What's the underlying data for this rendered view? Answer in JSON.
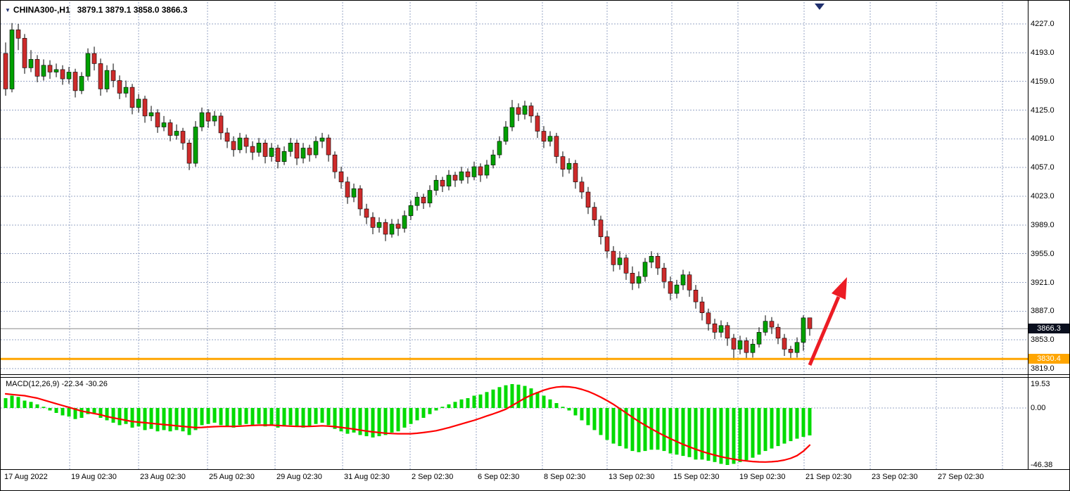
{
  "header": {
    "symbol_dropdown_marker": "▼",
    "symbol_period": "CHINA300-,H1",
    "ohlc": "3879.1 3879.1 3858.0 3866.3"
  },
  "badges": {
    "current": "3866.3",
    "level": "3830.4"
  },
  "colors": {
    "background": "#FFFFFF",
    "bull": "#00A000",
    "bear": "#CE2B2B",
    "candle_outline": "#000000",
    "histogram": "#00DB00",
    "signal": "#FF0000",
    "grid": "#97A5C6",
    "orange_line": "#FFA500",
    "current_price_line": "#8A8A8A",
    "arrow": "#EC1C24",
    "shift_marker": "#20306E",
    "badge_current_bg": "#0A0F1E",
    "badge_orange_bg": "#FFA500",
    "text": "#000000"
  },
  "chart_data": {
    "type": "candlestick",
    "title": "CHINA300-,H1",
    "current_bar": {
      "open": 3879.1,
      "high": 3879.1,
      "low": 3858.0,
      "close": 3866.3
    },
    "y_tick_labels": [
      "4227.0",
      "4193.0",
      "4159.0",
      "4125.0",
      "4091.0",
      "4057.0",
      "4023.0",
      "3989.0",
      "3955.0",
      "3921.0",
      "3887.0",
      "3853.0",
      "3819.0"
    ],
    "y_tick_values": [
      4227.0,
      4193.0,
      4159.0,
      4125.0,
      4091.0,
      4057.0,
      4023.0,
      3989.0,
      3955.0,
      3921.0,
      3887.0,
      3853.0,
      3819.0
    ],
    "x_tick_labels": [
      "17 Aug 2022",
      "19 Aug 02:30",
      "23 Aug 02:30",
      "25 Aug 02:30",
      "29 Aug 02:30",
      "31 Aug 02:30",
      "2 Sep 02:30",
      "6 Sep 02:30",
      "8 Sep 02:30",
      "13 Sep 02:30",
      "15 Sep 02:30",
      "19 Sep 02:30",
      "21 Sep 02:30",
      "23 Sep 02:30",
      "27 Sep 02:30"
    ],
    "levels": {
      "current_price": 3866.3,
      "horizontal_line": 3830.4
    },
    "candles": [
      [
        4192,
        4205,
        4142,
        4150
      ],
      [
        4150,
        4228,
        4146,
        4220
      ],
      [
        4220,
        4227,
        4196,
        4210
      ],
      [
        4210,
        4215,
        4168,
        4175
      ],
      [
        4175,
        4196,
        4170,
        4185
      ],
      [
        4185,
        4190,
        4158,
        4165
      ],
      [
        4165,
        4185,
        4160,
        4178
      ],
      [
        4178,
        4184,
        4162,
        4170
      ],
      [
        4170,
        4180,
        4164,
        4173
      ],
      [
        4173,
        4178,
        4155,
        4162
      ],
      [
        4162,
        4176,
        4156,
        4170
      ],
      [
        4170,
        4174,
        4140,
        4148
      ],
      [
        4148,
        4170,
        4144,
        4165
      ],
      [
        4165,
        4198,
        4160,
        4192
      ],
      [
        4192,
        4200,
        4172,
        4180
      ],
      [
        4180,
        4186,
        4142,
        4150
      ],
      [
        4150,
        4178,
        4146,
        4172
      ],
      [
        4172,
        4180,
        4152,
        4160
      ],
      [
        4160,
        4166,
        4138,
        4145
      ],
      [
        4145,
        4160,
        4140,
        4152
      ],
      [
        4152,
        4156,
        4120,
        4128
      ],
      [
        4128,
        4144,
        4122,
        4138
      ],
      [
        4138,
        4142,
        4110,
        4118
      ],
      [
        4118,
        4130,
        4112,
        4122
      ],
      [
        4122,
        4126,
        4098,
        4105
      ],
      [
        4105,
        4118,
        4100,
        4110
      ],
      [
        4110,
        4114,
        4088,
        4095
      ],
      [
        4095,
        4108,
        4090,
        4100
      ],
      [
        4100,
        4104,
        4078,
        4086
      ],
      [
        4086,
        4090,
        4054,
        4062
      ],
      [
        4062,
        4112,
        4058,
        4105
      ],
      [
        4105,
        4128,
        4100,
        4122
      ],
      [
        4122,
        4126,
        4104,
        4112
      ],
      [
        4112,
        4124,
        4106,
        4118
      ],
      [
        4118,
        4122,
        4090,
        4098
      ],
      [
        4098,
        4104,
        4080,
        4088
      ],
      [
        4088,
        4094,
        4070,
        4078
      ],
      [
        4078,
        4098,
        4074,
        4092
      ],
      [
        4092,
        4096,
        4074,
        4082
      ],
      [
        4082,
        4088,
        4066,
        4075
      ],
      [
        4075,
        4092,
        4070,
        4086
      ],
      [
        4086,
        4090,
        4062,
        4070
      ],
      [
        4070,
        4086,
        4064,
        4080
      ],
      [
        4080,
        4084,
        4056,
        4064
      ],
      [
        4064,
        4082,
        4060,
        4076
      ],
      [
        4076,
        4092,
        4070,
        4086
      ],
      [
        4086,
        4090,
        4060,
        4068
      ],
      [
        4068,
        4086,
        4062,
        4080
      ],
      [
        4080,
        4084,
        4064,
        4072
      ],
      [
        4072,
        4094,
        4068,
        4088
      ],
      [
        4088,
        4098,
        4080,
        4092
      ],
      [
        4092,
        4096,
        4064,
        4072
      ],
      [
        4072,
        4076,
        4044,
        4052
      ],
      [
        4052,
        4058,
        4032,
        4040
      ],
      [
        4040,
        4046,
        4014,
        4022
      ],
      [
        4022,
        4038,
        4016,
        4032
      ],
      [
        4032,
        4036,
        4000,
        4008
      ],
      [
        4008,
        4014,
        3990,
        3998
      ],
      [
        3998,
        4004,
        3978,
        3986
      ],
      [
        3986,
        3998,
        3980,
        3992
      ],
      [
        3992,
        3996,
        3970,
        3978
      ],
      [
        3978,
        3996,
        3974,
        3990
      ],
      [
        3990,
        3996,
        3976,
        3985
      ],
      [
        3985,
        4006,
        3980,
        4000
      ],
      [
        4000,
        4018,
        3995,
        4012
      ],
      [
        4012,
        4028,
        4006,
        4022
      ],
      [
        4022,
        4026,
        4008,
        4015
      ],
      [
        4015,
        4036,
        4010,
        4030
      ],
      [
        4030,
        4048,
        4024,
        4042
      ],
      [
        4042,
        4046,
        4028,
        4035
      ],
      [
        4035,
        4054,
        4030,
        4048
      ],
      [
        4048,
        4052,
        4034,
        4042
      ],
      [
        4042,
        4058,
        4038,
        4052
      ],
      [
        4052,
        4056,
        4038,
        4046
      ],
      [
        4046,
        4064,
        4042,
        4058
      ],
      [
        4058,
        4062,
        4040,
        4048
      ],
      [
        4048,
        4066,
        4044,
        4060
      ],
      [
        4060,
        4078,
        4056,
        4072
      ],
      [
        4072,
        4094,
        4068,
        4088
      ],
      [
        4088,
        4112,
        4084,
        4105
      ],
      [
        4105,
        4137,
        4100,
        4128
      ],
      [
        4128,
        4133,
        4112,
        4120
      ],
      [
        4120,
        4136,
        4114,
        4130
      ],
      [
        4130,
        4134,
        4110,
        4118
      ],
      [
        4118,
        4122,
        4092,
        4100
      ],
      [
        4100,
        4106,
        4080,
        4088
      ],
      [
        4088,
        4100,
        4082,
        4094
      ],
      [
        4094,
        4098,
        4062,
        4070
      ],
      [
        4070,
        4076,
        4046,
        4055
      ],
      [
        4055,
        4068,
        4050,
        4062
      ],
      [
        4062,
        4066,
        4032,
        4040
      ],
      [
        4040,
        4046,
        4020,
        4028
      ],
      [
        4028,
        4034,
        4002,
        4010
      ],
      [
        4010,
        4016,
        3988,
        3995
      ],
      [
        3995,
        4000,
        3966,
        3975
      ],
      [
        3975,
        3982,
        3950,
        3958
      ],
      [
        3958,
        3964,
        3934,
        3942
      ],
      [
        3942,
        3958,
        3936,
        3950
      ],
      [
        3950,
        3954,
        3924,
        3932
      ],
      [
        3932,
        3940,
        3912,
        3920
      ],
      [
        3920,
        3934,
        3914,
        3928
      ],
      [
        3928,
        3950,
        3922,
        3945
      ],
      [
        3945,
        3958,
        3938,
        3952
      ],
      [
        3952,
        3956,
        3930,
        3938
      ],
      [
        3938,
        3944,
        3914,
        3922
      ],
      [
        3922,
        3928,
        3900,
        3908
      ],
      [
        3908,
        3924,
        3902,
        3918
      ],
      [
        3918,
        3936,
        3912,
        3930
      ],
      [
        3930,
        3934,
        3904,
        3912
      ],
      [
        3912,
        3918,
        3890,
        3898
      ],
      [
        3898,
        3904,
        3876,
        3885
      ],
      [
        3885,
        3890,
        3864,
        3872
      ],
      [
        3872,
        3878,
        3854,
        3862
      ],
      [
        3862,
        3876,
        3856,
        3870
      ],
      [
        3870,
        3874,
        3846,
        3855
      ],
      [
        3855,
        3860,
        3829,
        3842
      ],
      [
        3842,
        3858,
        3836,
        3852
      ],
      [
        3852,
        3856,
        3830,
        3838
      ],
      [
        3838,
        3854,
        3832,
        3848
      ],
      [
        3848,
        3868,
        3844,
        3862
      ],
      [
        3862,
        3882,
        3858,
        3875
      ],
      [
        3875,
        3880,
        3860,
        3868
      ],
      [
        3868,
        3872,
        3848,
        3855
      ],
      [
        3855,
        3860,
        3834,
        3842
      ],
      [
        3842,
        3846,
        3830,
        3838
      ],
      [
        3838,
        3856,
        3832,
        3850
      ],
      [
        3850,
        3882,
        3840,
        3879
      ],
      [
        3879.1,
        3879.1,
        3858.0,
        3866.3
      ]
    ],
    "indicator": {
      "name": "MACD(12,26,9)",
      "display_label": "MACD(12,26,9) -22.34 -30.26",
      "main_value": -22.34,
      "signal_value": -30.26,
      "y_tick_labels": [
        "19.53",
        "0.00",
        "-46.38"
      ],
      "y_tick_values": [
        19.53,
        0.0,
        -46.38
      ],
      "histogram": [
        8,
        10,
        9,
        6,
        5,
        3,
        1,
        -2,
        -4,
        -6,
        -7,
        -9,
        -8,
        -5,
        -4,
        -8,
        -10,
        -12,
        -14,
        -13,
        -16,
        -15,
        -18,
        -17,
        -19,
        -18,
        -19,
        -18,
        -19,
        -22,
        -18,
        -14,
        -13,
        -12,
        -14,
        -15,
        -16,
        -14,
        -13,
        -14,
        -13,
        -15,
        -14,
        -16,
        -15,
        -14,
        -15,
        -16,
        -15,
        -13,
        -12,
        -14,
        -17,
        -19,
        -21,
        -20,
        -22,
        -23,
        -24,
        -23,
        -22,
        -20,
        -19,
        -16,
        -13,
        -10,
        -8,
        -5,
        -2,
        1,
        3,
        5,
        7,
        8,
        10,
        11,
        13,
        15,
        17,
        18.5,
        19.5,
        19,
        18,
        16,
        13,
        10,
        7,
        4,
        1,
        -2,
        -6,
        -10,
        -14,
        -18,
        -22,
        -26,
        -29,
        -31,
        -33,
        -35,
        -36,
        -35,
        -34,
        -34,
        -35,
        -37,
        -38,
        -39,
        -40,
        -42,
        -42,
        -43,
        -44,
        -45.5,
        -46.4,
        -45.5,
        -44,
        -42.5,
        -40.5,
        -38,
        -35,
        -33,
        -31,
        -29,
        -27,
        -25,
        -23.5,
        -22.34
      ],
      "signal": [
        11.5,
        11,
        10.5,
        10,
        9,
        8,
        6.5,
        5,
        3.5,
        2,
        0.5,
        -1,
        -2.5,
        -3.5,
        -4.5,
        -5.5,
        -7,
        -8,
        -9,
        -10,
        -11,
        -11.5,
        -12,
        -12.5,
        -13,
        -13.5,
        -14,
        -14.5,
        -15,
        -15.5,
        -16,
        -15.8,
        -15.5,
        -15.2,
        -15,
        -15,
        -15,
        -14.8,
        -14.5,
        -14.2,
        -14,
        -14,
        -14,
        -14.2,
        -14.5,
        -14.8,
        -15,
        -15,
        -15,
        -14.8,
        -14.5,
        -14.8,
        -15.2,
        -15.8,
        -16.5,
        -17.2,
        -18,
        -18.8,
        -19.5,
        -20,
        -20.5,
        -20.8,
        -21,
        -21,
        -21,
        -20.6,
        -20,
        -19.3,
        -18.5,
        -17.3,
        -16,
        -14.5,
        -13,
        -11.5,
        -10,
        -8.3,
        -6.5,
        -4.8,
        -3,
        -1,
        2,
        5,
        8,
        10.5,
        12.5,
        14.5,
        16,
        17,
        17.4,
        17.2,
        16.5,
        15.2,
        13.5,
        11.3,
        8.8,
        6,
        3,
        -0.5,
        -4,
        -7.5,
        -11,
        -14,
        -17,
        -19.8,
        -22.5,
        -25,
        -27.4,
        -29.6,
        -31.7,
        -33.6,
        -35.4,
        -37,
        -38.4,
        -39.7,
        -40.8,
        -41.7,
        -42.5,
        -43.1,
        -43.6,
        -43.9,
        -44,
        -43.8,
        -43.3,
        -42.4,
        -41,
        -38.8,
        -35.2,
        -30.26
      ]
    }
  }
}
